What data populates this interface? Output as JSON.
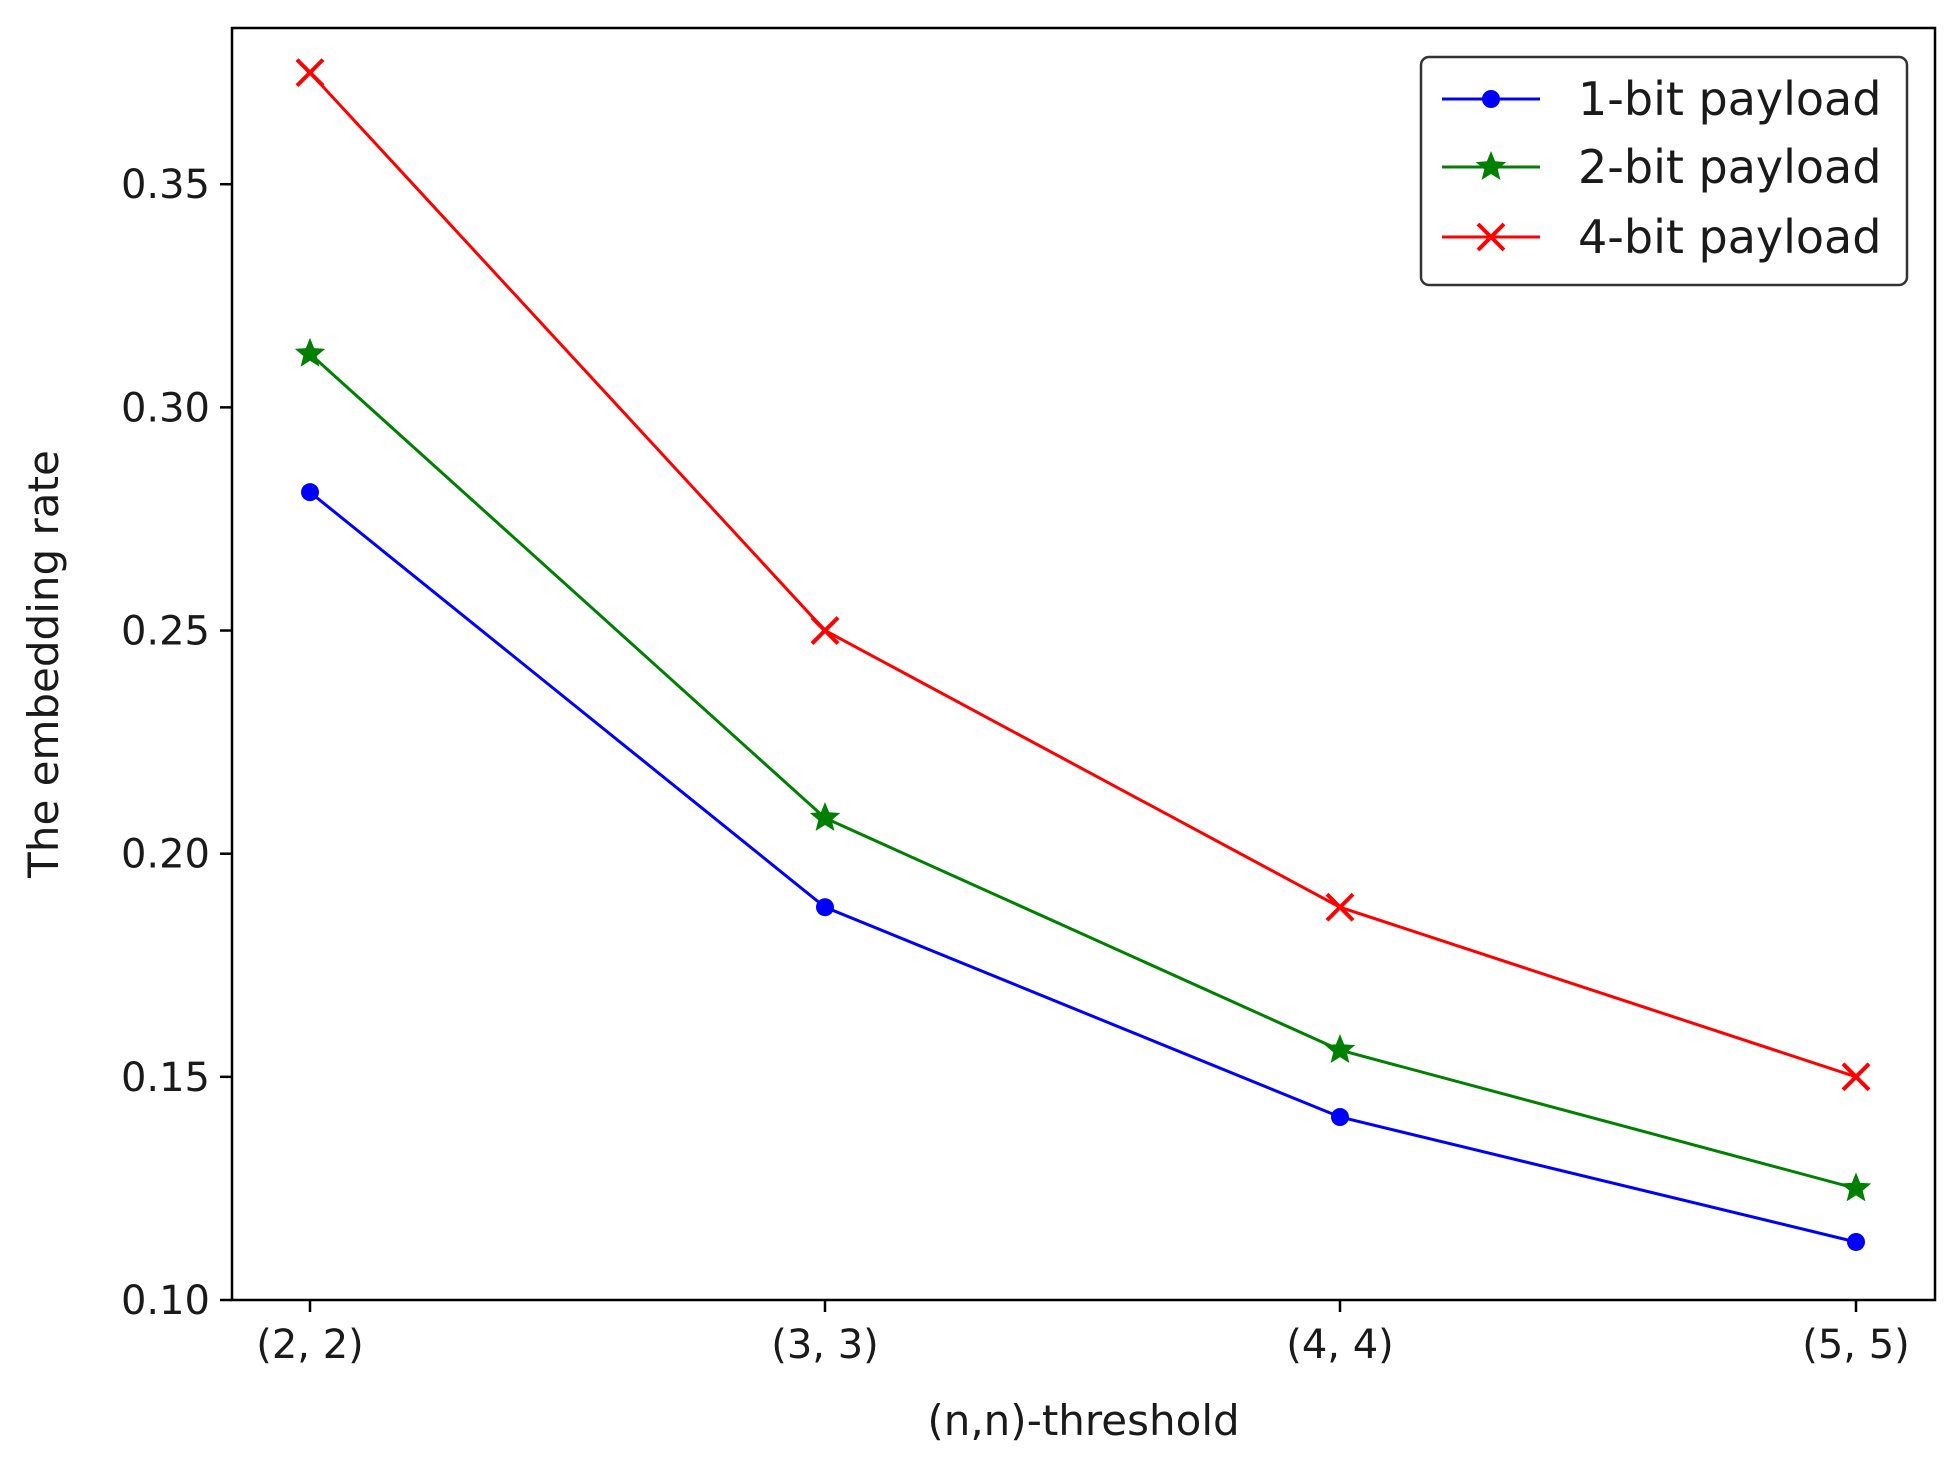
{
  "chart_data": {
    "type": "line",
    "title": "",
    "xlabel": "(n,n)-threshold",
    "ylabel": "The embedding rate",
    "categories": [
      "(2, 2)",
      "(3, 3)",
      "(4, 4)",
      "(5, 5)"
    ],
    "ylim": [
      0.1,
      0.385
    ],
    "yticks": [
      0.1,
      0.15,
      0.2,
      0.25,
      0.3,
      0.35
    ],
    "ytick_labels": [
      "0.10",
      "0.15",
      "0.20",
      "0.25",
      "0.30",
      "0.35"
    ],
    "grid": false,
    "legend_position": "top-right",
    "series": [
      {
        "name": "1-bit payload",
        "color": "#0000ff",
        "marker": "circle",
        "values": [
          0.281,
          0.188,
          0.141,
          0.113
        ]
      },
      {
        "name": "2-bit payload",
        "color": "#008000",
        "marker": "star",
        "values": [
          0.312,
          0.208,
          0.156,
          0.125
        ]
      },
      {
        "name": "4-bit payload",
        "color": "#ff0000",
        "marker": "x",
        "values": [
          0.375,
          0.25,
          0.188,
          0.15
        ]
      }
    ]
  }
}
